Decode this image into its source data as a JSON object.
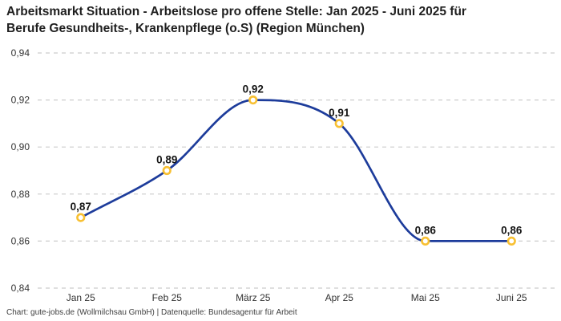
{
  "header": {
    "title": "Arbeitsmarkt Situation - Arbeitslose pro offene Stelle: Jan 2025 - Juni 2025 für\nBerufe Gesundheits-, Krankenpflege (o.S) (Region München)"
  },
  "chart_data": {
    "type": "line",
    "categories": [
      "Jan 25",
      "Feb 25",
      "März 25",
      "Apr 25",
      "Mai 25",
      "Juni 25"
    ],
    "values": [
      0.87,
      0.89,
      0.92,
      0.91,
      0.86,
      0.86
    ],
    "point_labels": [
      "0,87",
      "0,89",
      "0,92",
      "0,91",
      "0,86",
      "0,86"
    ],
    "ylim": [
      0.84,
      0.94
    ],
    "yticks": [
      0.84,
      0.86,
      0.88,
      0.9,
      0.92,
      0.94
    ],
    "ytick_labels": [
      "0,84",
      "0,86",
      "0,88",
      "0,90",
      "0,92",
      "0,94"
    ],
    "xlabel": "",
    "ylabel": "",
    "legend": "none",
    "grid": "horizontal-dashed",
    "smoothing": "monotone-cubic",
    "colors": {
      "line": "#1D3C9B",
      "marker_ring": "#F8C032",
      "marker_fill": "#FFFFFF",
      "grid": "#CCCCCC",
      "axis_text": "#333333",
      "point_label_text": "#141414"
    }
  },
  "footer": {
    "attribution": "Chart: gute-jobs.de (Wollmilchsau GmbH) | Datenquelle: Bundesagentur für Arbeit"
  }
}
